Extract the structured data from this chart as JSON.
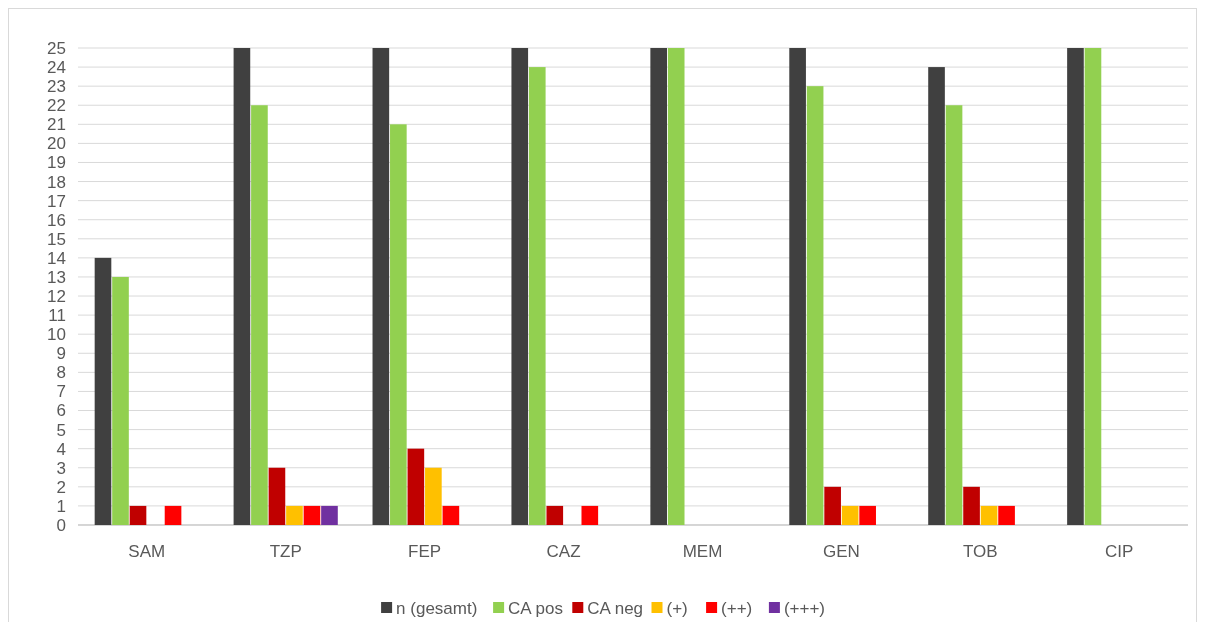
{
  "chart_data": {
    "type": "bar",
    "categories": [
      "SAM",
      "TZP",
      "FEP",
      "CAZ",
      "MEM",
      "GEN",
      "TOB",
      "CIP"
    ],
    "series": [
      {
        "name": "n (gesamt)",
        "color": "#404040",
        "values": [
          14,
          25,
          25,
          25,
          25,
          25,
          24,
          25
        ]
      },
      {
        "name": "CA pos",
        "color": "#92d050",
        "values": [
          13,
          22,
          21,
          24,
          25,
          23,
          22,
          25
        ]
      },
      {
        "name": "CA neg",
        "color": "#c00000",
        "values": [
          1,
          3,
          4,
          1,
          0,
          2,
          2,
          0
        ]
      },
      {
        "name": "(+)",
        "color": "#ffc000",
        "values": [
          null,
          1,
          3,
          0,
          0,
          1,
          1,
          0
        ]
      },
      {
        "name": "(++)",
        "color": "#ff0000",
        "values": [
          1,
          1,
          1,
          1,
          0,
          1,
          1,
          0
        ]
      },
      {
        "name": "(+++)",
        "color": "#7030a0",
        "values": [
          null,
          1,
          0,
          0,
          0,
          0,
          0,
          0
        ]
      }
    ],
    "ylim": [
      0,
      25
    ],
    "yticks": [
      0,
      1,
      2,
      3,
      4,
      5,
      6,
      7,
      8,
      9,
      10,
      11,
      12,
      13,
      14,
      15,
      16,
      17,
      18,
      19,
      20,
      21,
      22,
      23,
      24,
      25
    ],
    "grid": "y",
    "legend": "bottom"
  }
}
